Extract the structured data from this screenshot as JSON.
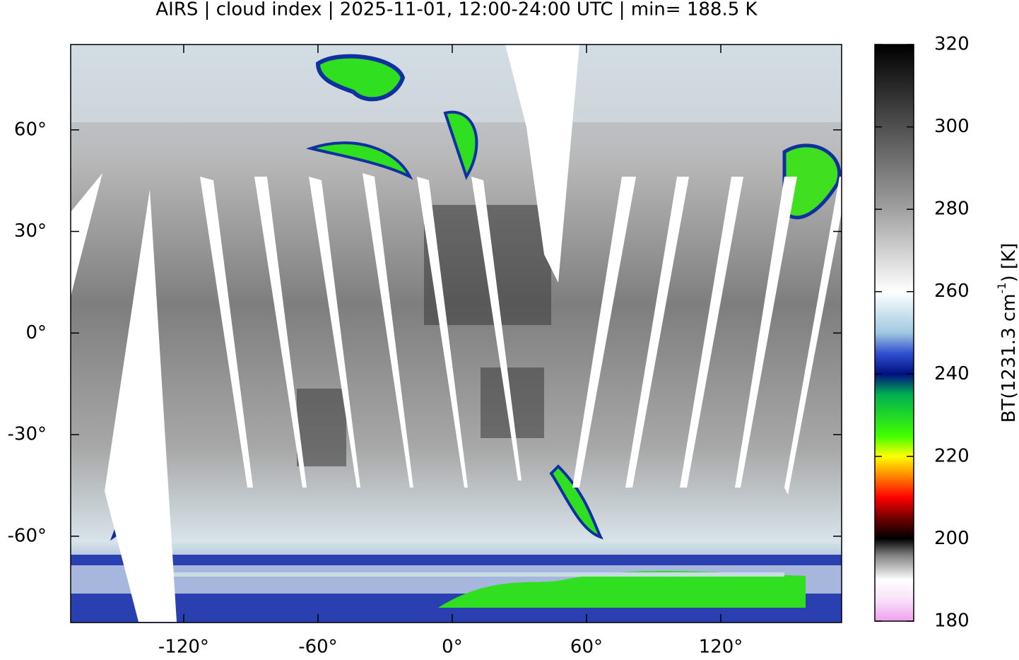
{
  "map": {
    "title": "AIRS | cloud index | 2025-11-01, 12:00-24:00 UTC | min= 188.5 K",
    "lonlim": [
      -170.5,
      174
    ],
    "latlim": [
      -85.5,
      85.2
    ],
    "xticks": [
      {
        "value": -120,
        "label": "-120°"
      },
      {
        "value": -60,
        "label": "-60°"
      },
      {
        "value": 0,
        "label": "0°"
      },
      {
        "value": 60,
        "label": "60°"
      },
      {
        "value": 120,
        "label": "120°"
      }
    ],
    "yticks": [
      {
        "value": 60,
        "label": "60°"
      },
      {
        "value": 30,
        "label": "30°"
      },
      {
        "value": 0,
        "label": "0°"
      },
      {
        "value": -30,
        "label": "-30°"
      },
      {
        "value": -60,
        "label": "-60°"
      }
    ],
    "colorbar": {
      "label": [
        "BT(1231.3 cm",
        "-1",
        ") [K]"
      ],
      "lim": [
        180,
        320
      ],
      "ticks": [
        320,
        300,
        280,
        260,
        240,
        220,
        200,
        180
      ],
      "colormap": [
        [
          180,
          "#f0a0f0"
        ],
        [
          185,
          "#f8e0f8"
        ],
        [
          190,
          "#ffffff"
        ],
        [
          196,
          "#808080"
        ],
        [
          200,
          "#000000"
        ],
        [
          205,
          "#700000"
        ],
        [
          210,
          "#ff0000"
        ],
        [
          215,
          "#ff8000"
        ],
        [
          220,
          "#ffff00"
        ],
        [
          225,
          "#40ff00"
        ],
        [
          235,
          "#00b050"
        ],
        [
          240,
          "#001080"
        ],
        [
          245,
          "#3050d0"
        ],
        [
          250,
          "#a0c8e0"
        ],
        [
          260,
          "#ffffff"
        ],
        [
          280,
          "#a0a0a0"
        ],
        [
          300,
          "#505050"
        ],
        [
          320,
          "#000000"
        ]
      ]
    }
  }
}
